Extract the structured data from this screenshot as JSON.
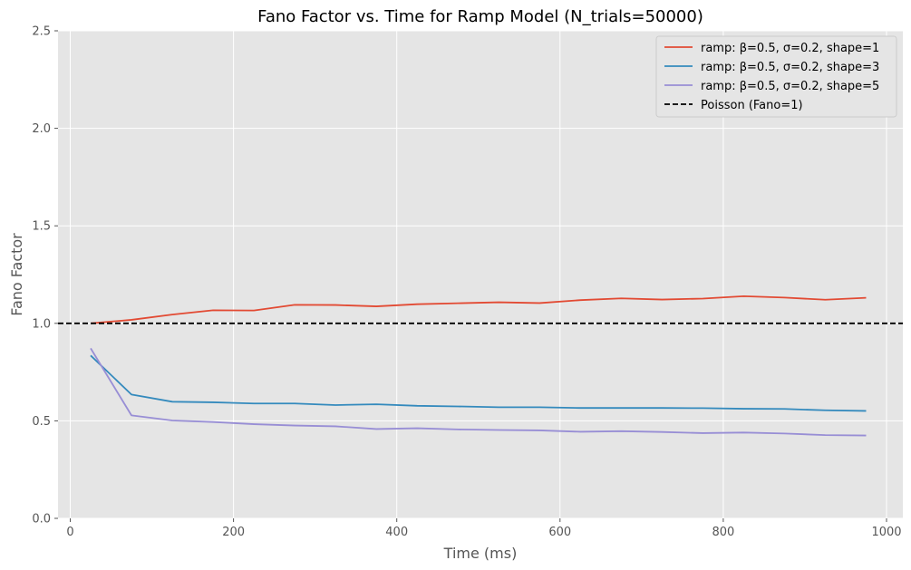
{
  "chart_data": {
    "type": "line",
    "title": "Fano Factor vs. Time for Ramp Model (N_trials=50000)",
    "xlabel": "Time (ms)",
    "ylabel": "Fano Factor",
    "xlim": [
      -15,
      1020
    ],
    "ylim": [
      0,
      2.5
    ],
    "xticks": [
      0,
      200,
      400,
      600,
      800,
      1000
    ],
    "xtick_labels": [
      "0",
      "200",
      "400",
      "600",
      "800",
      "1000"
    ],
    "yticks": [
      0.0,
      0.5,
      1.0,
      1.5,
      2.0,
      2.5
    ],
    "ytick_labels": [
      "0.0",
      "0.5",
      "1.0",
      "1.5",
      "2.0",
      "2.5"
    ],
    "grid": true,
    "legend_position": "top-right",
    "x": [
      25,
      75,
      125,
      175,
      225,
      275,
      325,
      375,
      425,
      475,
      525,
      575,
      625,
      675,
      725,
      775,
      825,
      875,
      925,
      975
    ],
    "series": [
      {
        "name": "ramp: β=0.5, σ=0.2, shape=1",
        "color": "#E24A33",
        "values": [
          1.0,
          1.018,
          1.045,
          1.067,
          1.066,
          1.095,
          1.094,
          1.087,
          1.098,
          1.103,
          1.108,
          1.104,
          1.119,
          1.128,
          1.122,
          1.127,
          1.139,
          1.132,
          1.121,
          1.131
        ]
      },
      {
        "name": "ramp: β=0.5, σ=0.2, shape=3",
        "color": "#348ABD",
        "values": [
          0.835,
          0.635,
          0.598,
          0.595,
          0.589,
          0.589,
          0.581,
          0.585,
          0.577,
          0.574,
          0.57,
          0.57,
          0.566,
          0.566,
          0.566,
          0.565,
          0.562,
          0.561,
          0.554,
          0.551
        ]
      },
      {
        "name": "ramp: β=0.5, σ=0.2, shape=5",
        "color": "#988ED5",
        "values": [
          0.872,
          0.528,
          0.502,
          0.494,
          0.483,
          0.476,
          0.472,
          0.458,
          0.462,
          0.456,
          0.453,
          0.451,
          0.444,
          0.447,
          0.443,
          0.437,
          0.44,
          0.435,
          0.427,
          0.425
        ]
      }
    ],
    "reference_line": {
      "name": "Poisson (Fano=1)",
      "value": 1.0,
      "color": "#000000"
    }
  }
}
